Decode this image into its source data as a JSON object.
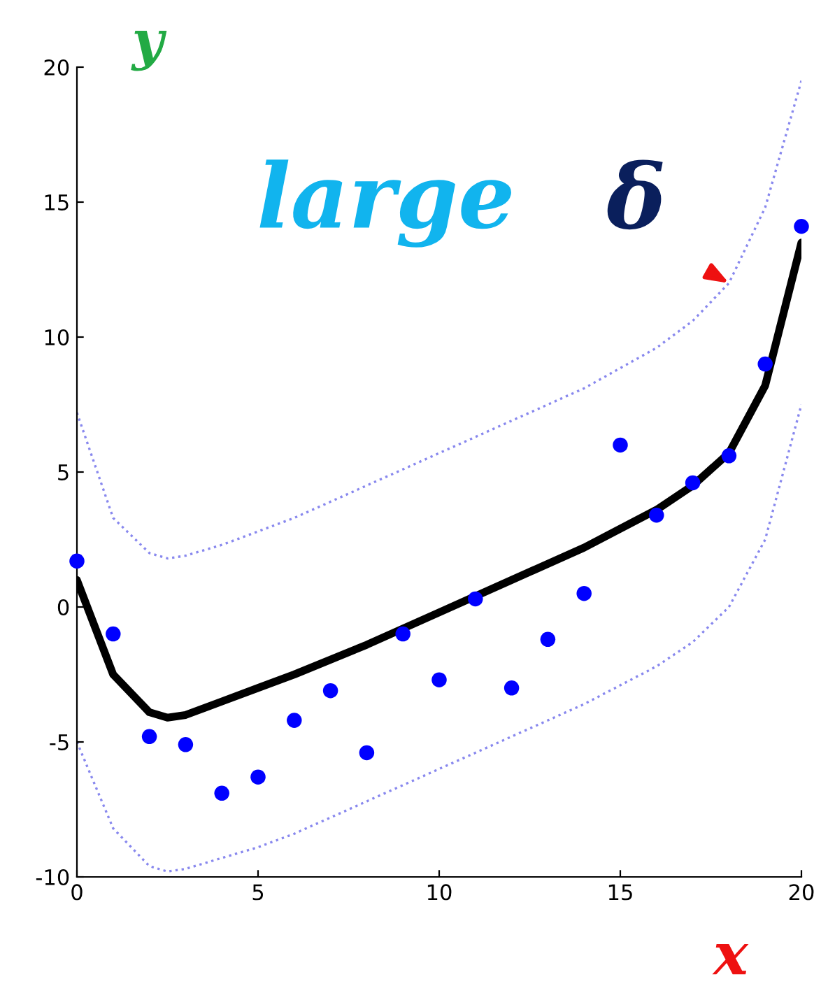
{
  "chart_data": {
    "type": "scatter",
    "xlabel": "x",
    "ylabel": "y",
    "xlim": [
      0,
      20
    ],
    "ylim": [
      -10,
      20
    ],
    "xticks": [
      0,
      5,
      10,
      15,
      20
    ],
    "yticks": [
      -10,
      -5,
      0,
      5,
      10,
      15,
      20
    ],
    "grid": false,
    "legend": false,
    "annotations": [
      "large",
      {
        "text": "δ",
        "x": 18,
        "y": 12
      }
    ],
    "series": [
      {
        "color": "#0000ff",
        "marker": "circle",
        "x": [
          0,
          1,
          2,
          3,
          4,
          5,
          6,
          7,
          8,
          9,
          10,
          11,
          12,
          13,
          14,
          15,
          16,
          17,
          18,
          19,
          20
        ],
        "values": [
          1.7,
          -1.0,
          -4.8,
          -5.1,
          -6.9,
          -6.3,
          -4.2,
          -3.1,
          -5.4,
          -1.0,
          -2.7,
          0.3,
          -3.0,
          -1.2,
          0.5,
          6.0,
          3.4,
          4.6,
          5.6,
          9.0,
          14.1
        ]
      },
      {
        "type": "line",
        "color": "#000000",
        "marker": "none",
        "line_style": "solid",
        "x": [
          0,
          1,
          2,
          2.5,
          3,
          4,
          5,
          6,
          8,
          10,
          12,
          14,
          16,
          17,
          18,
          19,
          20
        ],
        "values": [
          1.0,
          -2.5,
          -3.9,
          -4.1,
          -4.0,
          -3.5,
          -3.0,
          -2.5,
          -1.4,
          -0.2,
          1.0,
          2.2,
          3.6,
          4.5,
          5.7,
          8.2,
          13.5
        ]
      },
      {
        "type": "line",
        "color": "#8888ee",
        "marker": "none",
        "line_style": "dotted",
        "x": [
          0,
          1,
          2,
          2.5,
          3,
          4,
          5,
          6,
          8,
          10,
          12,
          14,
          16,
          17,
          18,
          19,
          20
        ],
        "values": [
          7.2,
          3.3,
          2.0,
          1.8,
          1.9,
          2.3,
          2.8,
          3.3,
          4.5,
          5.7,
          6.9,
          8.1,
          9.6,
          10.6,
          12.0,
          14.8,
          19.5
        ]
      },
      {
        "type": "line",
        "color": "#8888ee",
        "marker": "none",
        "line_style": "dotted",
        "x": [
          0,
          1,
          2,
          2.5,
          3,
          4,
          5,
          6,
          8,
          10,
          12,
          14,
          16,
          17,
          18,
          19,
          20
        ],
        "values": [
          -5.0,
          -8.2,
          -9.6,
          -9.8,
          -9.7,
          -9.3,
          -8.9,
          -8.4,
          -7.2,
          -6.0,
          -4.8,
          -3.6,
          -2.2,
          -1.3,
          0.0,
          2.5,
          7.5
        ]
      }
    ]
  }
}
